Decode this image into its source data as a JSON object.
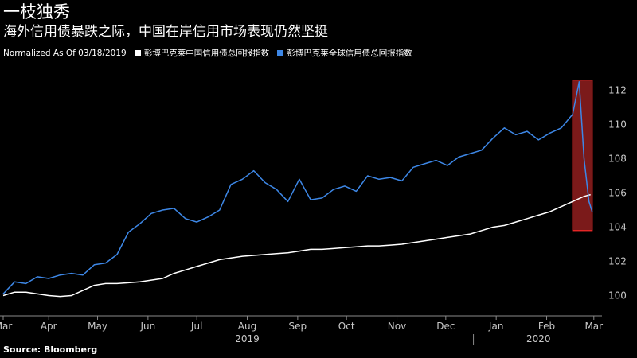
{
  "header": {
    "title": "一枝独秀",
    "subtitle": "海外信用债暴跌之际，中国在岸信用市场表现仍然坚挺"
  },
  "legend": {
    "note": "Normalized As Of 03/18/2019",
    "items": [
      {
        "label": "彭博巴克莱中国信用债总回报指数",
        "color": "#ffffff"
      },
      {
        "label": "彭博巴克莱全球信用债总回报指数",
        "color": "#3d87e6"
      }
    ]
  },
  "source": "Source: Bloomberg",
  "colors": {
    "background": "#000000",
    "china": "#ffffff",
    "global": "#3d87e6",
    "highlight": "#e03030"
  },
  "chart_data": {
    "type": "line",
    "title": "一枝独秀",
    "subtitle": "海外信用债暴跌之际，中国在岸信用市场表现仍然坚挺",
    "ylim": [
      99,
      113
    ],
    "yticks": [
      100,
      102,
      104,
      106,
      108,
      110,
      112
    ],
    "xlim": [
      "2019-03-18",
      "2020-03-20"
    ],
    "xticks": [
      {
        "label": "Mar",
        "date": "2019-03-18"
      },
      {
        "label": "Apr",
        "date": "2019-04-15"
      },
      {
        "label": "May",
        "date": "2019-05-15"
      },
      {
        "label": "Jun",
        "date": "2019-06-15"
      },
      {
        "label": "Jul",
        "date": "2019-07-15"
      },
      {
        "label": "Aug",
        "date": "2019-08-15"
      },
      {
        "label": "Sep",
        "date": "2019-09-15"
      },
      {
        "label": "Oct",
        "date": "2019-10-15"
      },
      {
        "label": "Nov",
        "date": "2019-11-15"
      },
      {
        "label": "Dec",
        "date": "2019-12-15"
      },
      {
        "label": "Jan",
        "date": "2020-01-15"
      },
      {
        "label": "Feb",
        "date": "2020-02-15"
      },
      {
        "label": "Mar",
        "date": "2020-03-15"
      }
    ],
    "year_labels": [
      {
        "label": "2019",
        "date": "2019-08-15"
      },
      {
        "label": "2020",
        "date": "2020-02-10"
      }
    ],
    "year_divider_date": "2020-01-01",
    "highlight": {
      "x_from": "2020-03-02",
      "x_to": "2020-03-14",
      "y_from": 103.8,
      "y_to": 112.6
    },
    "series": [
      {
        "name": "彭博巴克莱中国信用债总回报指数",
        "color": "#ffffff",
        "x": [
          "2019-03-18",
          "2019-03-25",
          "2019-04-01",
          "2019-04-08",
          "2019-04-15",
          "2019-04-22",
          "2019-04-29",
          "2019-05-06",
          "2019-05-13",
          "2019-05-20",
          "2019-05-27",
          "2019-06-03",
          "2019-06-10",
          "2019-06-17",
          "2019-06-24",
          "2019-07-01",
          "2019-07-08",
          "2019-07-15",
          "2019-07-22",
          "2019-07-29",
          "2019-08-05",
          "2019-08-12",
          "2019-08-19",
          "2019-08-26",
          "2019-09-02",
          "2019-09-09",
          "2019-09-16",
          "2019-09-23",
          "2019-09-30",
          "2019-10-07",
          "2019-10-14",
          "2019-10-21",
          "2019-10-28",
          "2019-11-04",
          "2019-11-11",
          "2019-11-18",
          "2019-11-25",
          "2019-12-02",
          "2019-12-09",
          "2019-12-16",
          "2019-12-23",
          "2019-12-30",
          "2020-01-06",
          "2020-01-13",
          "2020-01-20",
          "2020-01-27",
          "2020-02-03",
          "2020-02-10",
          "2020-02-17",
          "2020-02-24",
          "2020-03-02",
          "2020-03-09",
          "2020-03-13"
        ],
        "values": [
          100.0,
          100.2,
          100.2,
          100.1,
          100.0,
          99.95,
          100.0,
          100.3,
          100.6,
          100.7,
          100.7,
          100.75,
          100.8,
          100.9,
          101.0,
          101.3,
          101.5,
          101.7,
          101.9,
          102.1,
          102.2,
          102.3,
          102.35,
          102.4,
          102.45,
          102.5,
          102.6,
          102.7,
          102.7,
          102.75,
          102.8,
          102.85,
          102.9,
          102.9,
          102.95,
          103.0,
          103.1,
          103.2,
          103.3,
          103.4,
          103.5,
          103.6,
          103.8,
          104.0,
          104.1,
          104.3,
          104.5,
          104.7,
          104.9,
          105.2,
          105.5,
          105.8,
          105.9
        ]
      },
      {
        "name": "彭博巴克莱全球信用债总回报指数",
        "color": "#3d87e6",
        "x": [
          "2019-03-18",
          "2019-03-25",
          "2019-04-01",
          "2019-04-08",
          "2019-04-15",
          "2019-04-22",
          "2019-04-29",
          "2019-05-06",
          "2019-05-13",
          "2019-05-20",
          "2019-05-27",
          "2019-06-03",
          "2019-06-10",
          "2019-06-17",
          "2019-06-24",
          "2019-07-01",
          "2019-07-08",
          "2019-07-15",
          "2019-07-22",
          "2019-07-29",
          "2019-08-05",
          "2019-08-12",
          "2019-08-19",
          "2019-08-26",
          "2019-09-02",
          "2019-09-09",
          "2019-09-16",
          "2019-09-23",
          "2019-09-30",
          "2019-10-07",
          "2019-10-14",
          "2019-10-21",
          "2019-10-28",
          "2019-11-04",
          "2019-11-11",
          "2019-11-18",
          "2019-11-25",
          "2019-12-02",
          "2019-12-09",
          "2019-12-16",
          "2019-12-23",
          "2019-12-30",
          "2020-01-06",
          "2020-01-13",
          "2020-01-20",
          "2020-01-27",
          "2020-02-03",
          "2020-02-10",
          "2020-02-17",
          "2020-02-24",
          "2020-03-02",
          "2020-03-06",
          "2020-03-09",
          "2020-03-12",
          "2020-03-14"
        ],
        "values": [
          100.1,
          100.8,
          100.7,
          101.1,
          101.0,
          101.2,
          101.3,
          101.2,
          101.8,
          101.9,
          102.4,
          103.7,
          104.2,
          104.8,
          105.0,
          105.1,
          104.5,
          104.3,
          104.6,
          105.0,
          106.5,
          106.8,
          107.3,
          106.6,
          106.2,
          105.5,
          106.8,
          105.6,
          105.7,
          106.2,
          106.4,
          106.1,
          107.0,
          106.8,
          106.9,
          106.7,
          107.5,
          107.7,
          107.9,
          107.6,
          108.1,
          108.3,
          108.5,
          109.2,
          109.8,
          109.4,
          109.6,
          109.1,
          109.5,
          109.8,
          110.6,
          112.5,
          108.0,
          105.5,
          104.9
        ]
      }
    ]
  }
}
